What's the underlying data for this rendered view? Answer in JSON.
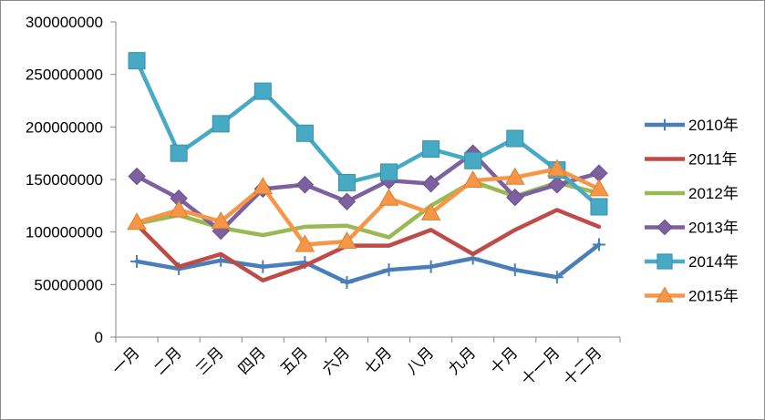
{
  "chart_data": {
    "type": "line",
    "title": "",
    "xlabel": "",
    "ylabel": "",
    "ylim": [
      0,
      300000000
    ],
    "yticks": [
      0,
      50000000,
      100000000,
      150000000,
      200000000,
      250000000,
      300000000
    ],
    "ytick_labels": [
      "0",
      "50000000",
      "100000000",
      "150000000",
      "200000000",
      "250000000",
      "300000000"
    ],
    "categories": [
      "一月",
      "二月",
      "三月",
      "四月",
      "五月",
      "六月",
      "七月",
      "八月",
      "九月",
      "十月",
      "十一月",
      "十二月"
    ],
    "grid": false,
    "legend_position": "right",
    "series": [
      {
        "name": "2010年",
        "color": "#4a7ebb",
        "marker": "plus",
        "values": [
          72000000,
          65000000,
          73000000,
          67000000,
          71000000,
          52000000,
          64000000,
          67000000,
          75000000,
          64000000,
          57000000,
          88000000
        ]
      },
      {
        "name": "2011年",
        "color": "#be4b48",
        "marker": "none",
        "values": [
          107000000,
          67000000,
          79000000,
          54000000,
          68000000,
          87000000,
          87000000,
          102000000,
          79000000,
          102000000,
          121000000,
          105000000
        ]
      },
      {
        "name": "2012年",
        "color": "#98b954",
        "marker": "none",
        "values": [
          108000000,
          116000000,
          104000000,
          97000000,
          105000000,
          106000000,
          95000000,
          125000000,
          148000000,
          134000000,
          147000000,
          137000000
        ]
      },
      {
        "name": "2013年",
        "color": "#7d60a0",
        "marker": "diamond",
        "values": [
          153000000,
          132000000,
          101000000,
          141000000,
          145000000,
          129000000,
          149000000,
          146000000,
          175000000,
          133000000,
          145000000,
          156000000
        ]
      },
      {
        "name": "2014年",
        "color": "#46aac5",
        "marker": "square",
        "values": [
          263000000,
          175000000,
          203000000,
          234000000,
          194000000,
          147000000,
          157000000,
          179000000,
          168000000,
          189000000,
          159000000,
          124000000
        ]
      },
      {
        "name": "2015年",
        "color": "#f79646",
        "marker": "triangle",
        "values": [
          109000000,
          121000000,
          110000000,
          143000000,
          88000000,
          91000000,
          132000000,
          118000000,
          149000000,
          152000000,
          160000000,
          141000000
        ]
      }
    ]
  }
}
